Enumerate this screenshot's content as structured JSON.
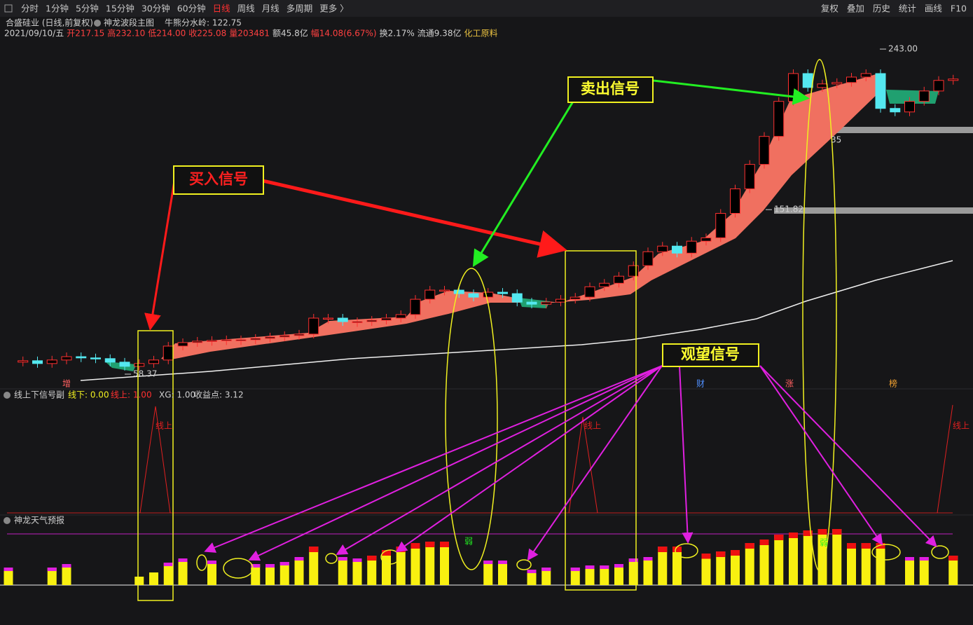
{
  "toolbar": {
    "periods": [
      "分时",
      "1分钟",
      "5分钟",
      "15分钟",
      "30分钟",
      "60分钟",
      "日线",
      "周线",
      "月线",
      "多周期",
      "更多 〉"
    ],
    "active_period": 6,
    "tools": [
      "复权",
      "叠加",
      "历史",
      "统计",
      "画线",
      "F10"
    ]
  },
  "header": {
    "stock": "合盛硅业 (日线,前复权)",
    "indicator": "神龙波段主图",
    "watershed": "牛熊分水岭: 122.75"
  },
  "quote": {
    "items": [
      {
        "text": "2021/09/10/五",
        "color": "#d0d0d0"
      },
      {
        "text": "开217.15",
        "color": "#ff4040"
      },
      {
        "text": "高232.10",
        "color": "#ff4040"
      },
      {
        "text": "低214.00",
        "color": "#ff4040"
      },
      {
        "text": "收225.08",
        "color": "#ff4040"
      },
      {
        "text": "量203481",
        "color": "#ff4040"
      },
      {
        "text": "额45.8亿",
        "color": "#d0d0d0"
      },
      {
        "text": "幅14.08(6.67%)",
        "color": "#ff4040"
      },
      {
        "text": "换2.17%",
        "color": "#d0d0d0"
      },
      {
        "text": "流通9.38亿",
        "color": "#d0d0d0"
      },
      {
        "text": "化工原料",
        "color": "#e8c040"
      }
    ]
  },
  "main_chart": {
    "type": "candlestick",
    "ylim": [
      52,
      247
    ],
    "closes": [
      65.2,
      66.0,
      64.4,
      66.4,
      68.3,
      67.6,
      67.2,
      65.2,
      62.8,
      64.4,
      66.4,
      74.3,
      76.3,
      77.1,
      77.5,
      77.9,
      77.9,
      78.7,
      79.5,
      80.3,
      81.1,
      90.2,
      90.2,
      88.2,
      88.2,
      89.0,
      90.2,
      92.2,
      100.9,
      106.1,
      106.1,
      104.1,
      102.1,
      104.9,
      104.1,
      99.3,
      98.1,
      99.3,
      100.9,
      102.1,
      108.0,
      110.0,
      114.0,
      120.0,
      127.9,
      131.1,
      127.1,
      133.9,
      135.8,
      149.7,
      163.6,
      177.5,
      193.4,
      213.3,
      229.1,
      221.2,
      223.2,
      224.0,
      227.1,
      229.1,
      209.3,
      207.3,
      213.3,
      219.2,
      225.2,
      226.0
    ],
    "up_color": "#ff3030",
    "down_color": "#54e8f0",
    "price_labels": [
      {
        "value": 243.0,
        "label": "243.00"
      },
      {
        "value": 151.82,
        "label": "151.82"
      },
      {
        "value": 58.37,
        "label": "58.37"
      }
    ],
    "fragment": "35",
    "events": [
      "增",
      "财",
      "涨",
      "榜"
    ]
  },
  "signal_panel": {
    "title": "线上下信号副",
    "below": "线下: 0.00",
    "above": "线上: 1.00",
    "xg": "XG: 1.00",
    "profit": "收益点: 3.12",
    "spike_label": "线上"
  },
  "weather_panel": {
    "title": "神龙天气预报",
    "weak": "弱",
    "ylim": [
      0,
      80
    ],
    "values": [
      25,
      null,
      null,
      25,
      30,
      null,
      null,
      null,
      null,
      12,
      18,
      32,
      38,
      null,
      35,
      null,
      null,
      30,
      30,
      33,
      40,
      55,
      null,
      40,
      38,
      42,
      50,
      55,
      60,
      62,
      62,
      null,
      null,
      35,
      35,
      null,
      22,
      25,
      null,
      25,
      28,
      28,
      30,
      38,
      40,
      55,
      55,
      null,
      45,
      48,
      50,
      60,
      65,
      72,
      75,
      78,
      80,
      80,
      60,
      60,
      60,
      null,
      40,
      40,
      null,
      42
    ]
  },
  "annotations": {
    "buy": "买入信号",
    "sell": "卖出信号",
    "watch": "观望信号"
  }
}
